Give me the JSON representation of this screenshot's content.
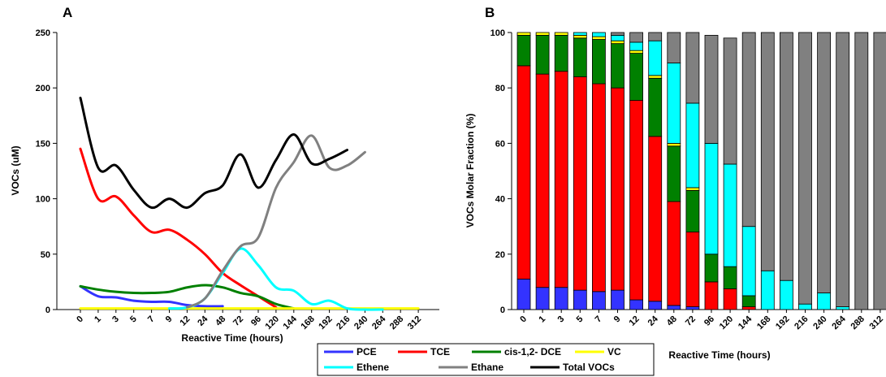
{
  "chart_data": [
    {
      "panel": "A",
      "type": "line",
      "xlabel": "Reactive Time (hours)",
      "ylabel": "VOCs (uM)",
      "ylim": [
        0,
        250
      ],
      "yticks": [
        0,
        50,
        100,
        150,
        200,
        250
      ],
      "categories": [
        "0",
        "1",
        "3",
        "5",
        "7",
        "9",
        "12",
        "24",
        "48",
        "72",
        "96",
        "120",
        "144",
        "168",
        "192",
        "216",
        "240",
        "264",
        "288",
        "312"
      ],
      "series": [
        {
          "name": "PCE",
          "color": "#3333ff",
          "values": [
            21,
            12,
            11,
            8,
            7,
            7,
            4,
            3,
            3,
            null,
            null,
            null,
            null,
            null,
            null,
            null,
            null,
            null,
            null,
            null
          ]
        },
        {
          "name": "TCE",
          "color": "#ff0000",
          "values": [
            145,
            100,
            102,
            85,
            70,
            72,
            63,
            50,
            33,
            22,
            12,
            2,
            null,
            null,
            null,
            null,
            null,
            null,
            null,
            null
          ]
        },
        {
          "name": "cis-1,2- DCE",
          "color": "#008000",
          "values": [
            21,
            18,
            16,
            15,
            15,
            16,
            20,
            22,
            20,
            15,
            12,
            5,
            1,
            null,
            null,
            null,
            null,
            null,
            null,
            null
          ]
        },
        {
          "name": "VC",
          "color": "#ffff00",
          "values": [
            1,
            1,
            1,
            1,
            1,
            1,
            1,
            1,
            1,
            1,
            1,
            1,
            1,
            1,
            1,
            1,
            1,
            1,
            1,
            1
          ]
        },
        {
          "name": "Ethene",
          "color": "#00ffff",
          "values": [
            null,
            null,
            null,
            null,
            null,
            1,
            2,
            10,
            33,
            55,
            40,
            20,
            17,
            5,
            8,
            1,
            0,
            0,
            null,
            null
          ]
        },
        {
          "name": "Ethane",
          "color": "#808080",
          "values": [
            null,
            null,
            null,
            null,
            null,
            null,
            2,
            10,
            35,
            57,
            65,
            110,
            133,
            157,
            128,
            130,
            142,
            null,
            null,
            null
          ]
        },
        {
          "name": "Total VOCs",
          "color": "#000000",
          "values": [
            191,
            128,
            130,
            108,
            92,
            100,
            92,
            105,
            112,
            140,
            110,
            135,
            158,
            132,
            136,
            144,
            null,
            null,
            null,
            null
          ]
        }
      ]
    },
    {
      "panel": "B",
      "type": "bar",
      "stacked": true,
      "xlabel": "Reactive Time (hours)",
      "ylabel": "VOCs Molar Fraction (%)",
      "ylim": [
        0,
        100
      ],
      "yticks": [
        0,
        20,
        40,
        60,
        80,
        100
      ],
      "categories": [
        "0",
        "1",
        "3",
        "5",
        "7",
        "9",
        "12",
        "24",
        "48",
        "72",
        "96",
        "120",
        "144",
        "168",
        "192",
        "216",
        "240",
        "264",
        "288",
        "312"
      ],
      "series": [
        {
          "name": "PCE",
          "color": "#3333ff",
          "values": [
            11,
            8,
            8,
            7,
            6.5,
            7,
            3.5,
            3,
            1.5,
            1,
            0,
            0,
            0,
            0,
            0,
            0,
            0,
            0,
            0,
            0
          ]
        },
        {
          "name": "TCE",
          "color": "#ff0000",
          "values": [
            77,
            77,
            78,
            77,
            75,
            73,
            72,
            59.5,
            37.5,
            27,
            10,
            7.5,
            1,
            0,
            0,
            0,
            0,
            0,
            0,
            0
          ]
        },
        {
          "name": "cis-1,2- DCE",
          "color": "#008000",
          "values": [
            11,
            14,
            13,
            14,
            16,
            16,
            17,
            21,
            20,
            15,
            10,
            8,
            4,
            0,
            0,
            0,
            0,
            0,
            0,
            0
          ]
        },
        {
          "name": "VC",
          "color": "#ffff00",
          "values": [
            1,
            1,
            1,
            1,
            1,
            1,
            1,
            1,
            1,
            1,
            0,
            0,
            0,
            0,
            0,
            0,
            0,
            0,
            0,
            0
          ]
        },
        {
          "name": "Ethene",
          "color": "#00ffff",
          "values": [
            0,
            0,
            0,
            1,
            1.5,
            2,
            3,
            12.5,
            29,
            30.5,
            40,
            37,
            25,
            14,
            10.5,
            2,
            6,
            1,
            0,
            0
          ]
        },
        {
          "name": "Ethane",
          "color": "#808080",
          "values": [
            0,
            0,
            0,
            0,
            0,
            1,
            3.5,
            3,
            11,
            25.5,
            39,
            45.5,
            70,
            86,
            89.5,
            98,
            94,
            99,
            100,
            100
          ]
        }
      ]
    }
  ],
  "legend": {
    "placement": "bottom-center",
    "items": [
      {
        "label": "PCE",
        "color": "#3333ff"
      },
      {
        "label": "TCE",
        "color": "#ff0000"
      },
      {
        "label": "cis-1,2- DCE",
        "color": "#008000"
      },
      {
        "label": "VC",
        "color": "#ffff00"
      },
      {
        "label": "Ethene",
        "color": "#00ffff"
      },
      {
        "label": "Ethane",
        "color": "#808080"
      },
      {
        "label": "Total VOCs",
        "color": "#000000"
      }
    ]
  }
}
